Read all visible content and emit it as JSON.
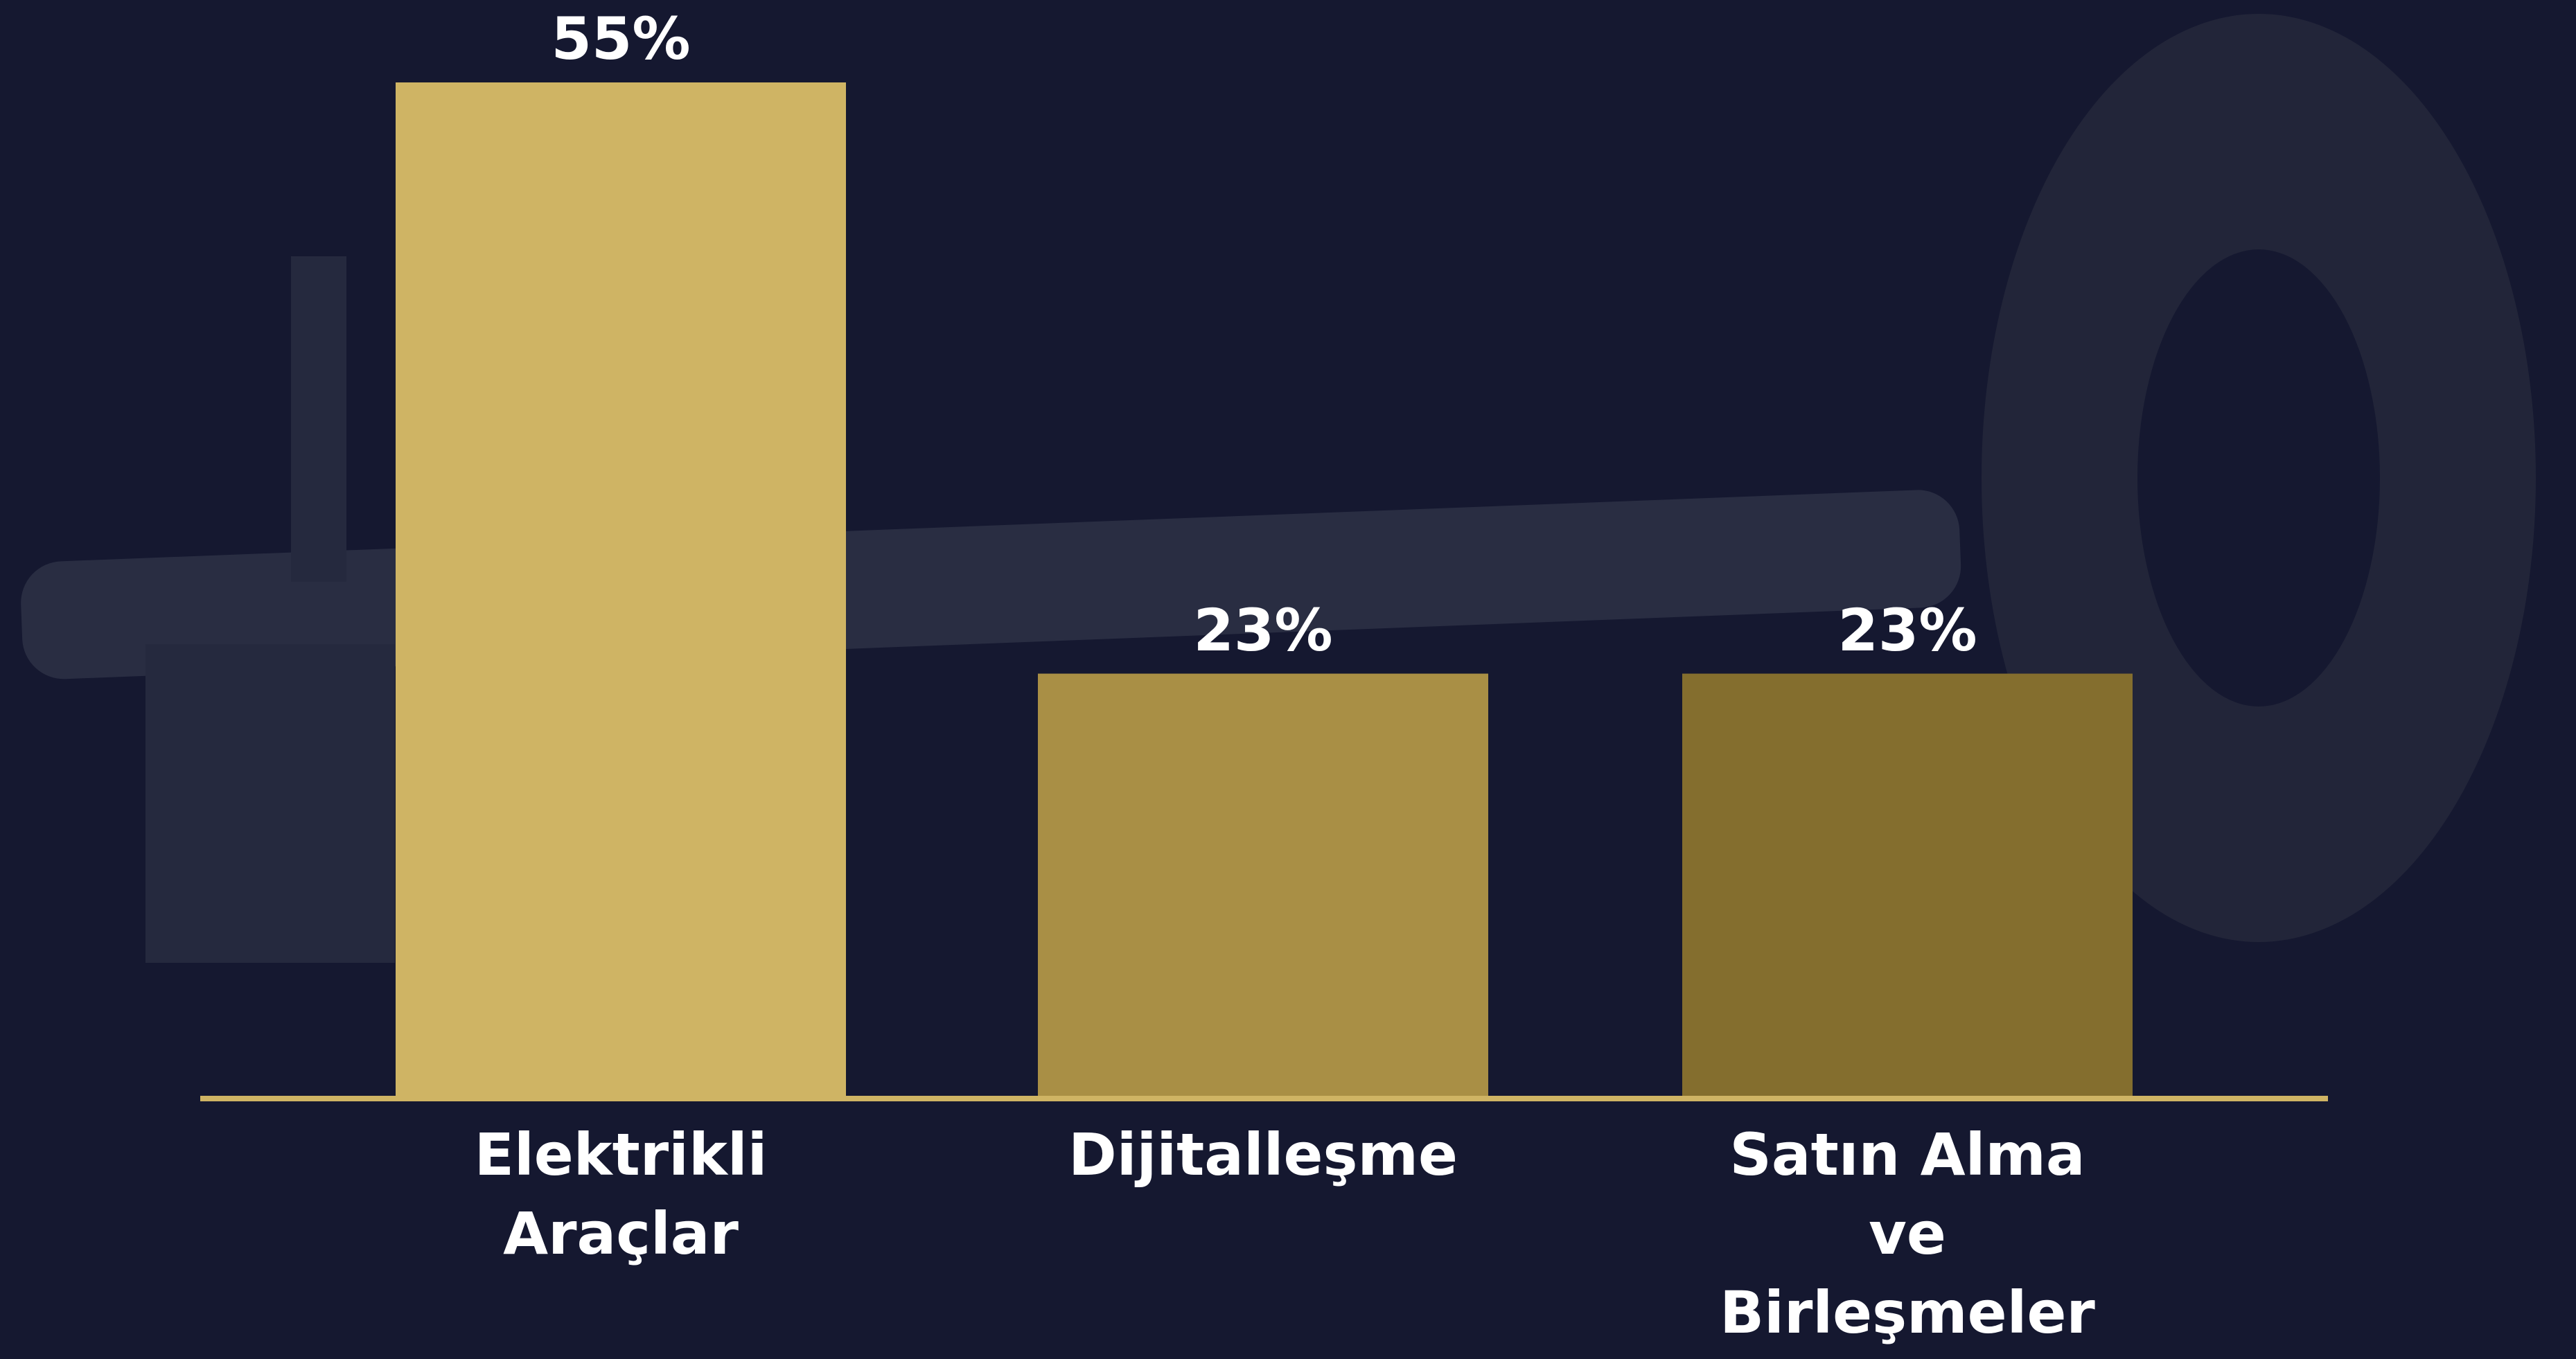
{
  "chart_data": {
    "type": "bar",
    "categories": [
      "Elektrikli Araçlar",
      "Dijitalleşme",
      "Satın Alma ve Birleşmeler"
    ],
    "values": [
      55,
      23,
      23
    ],
    "value_labels": [
      "55%",
      "23%",
      "23%"
    ],
    "colors": [
      "#cfb464",
      "#a98f45",
      "#846e2e"
    ],
    "axis_color": "#cfb464"
  }
}
